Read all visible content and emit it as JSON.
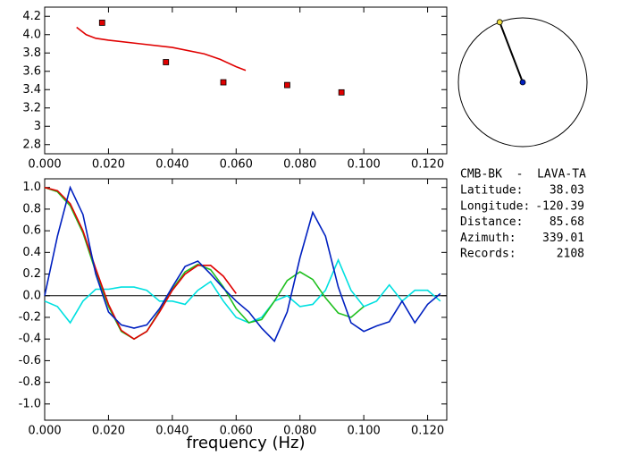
{
  "chart_data": [
    {
      "type": "scatter",
      "xlim": [
        0,
        0.126
      ],
      "ylim": [
        2.7,
        4.3
      ],
      "xticks": [
        {
          "value": 0,
          "label": "0.000"
        },
        {
          "value": 0.02,
          "label": "0.020"
        },
        {
          "value": 0.04,
          "label": "0.040"
        },
        {
          "value": 0.06,
          "label": "0.060"
        },
        {
          "value": 0.08,
          "label": "0.080"
        },
        {
          "value": 0.1,
          "label": "0.100"
        },
        {
          "value": 0.12,
          "label": "0.120"
        }
      ],
      "yticks": [
        2.8,
        3.0,
        3.2,
        3.4,
        3.6,
        3.8,
        {
          "value": 4,
          "label": "4.0"
        },
        4.2
      ],
      "points": {
        "color": "#e00000",
        "x": [
          0.018,
          0.038,
          0.056,
          0.076,
          0.093
        ],
        "values": [
          4.13,
          3.7,
          3.48,
          3.45,
          3.37
        ]
      },
      "curve": {
        "color": "#e00000",
        "x": [
          0.01,
          0.013,
          0.016,
          0.02,
          0.03,
          0.04,
          0.05,
          0.055,
          0.06,
          0.063
        ],
        "values": [
          4.08,
          4.0,
          3.96,
          3.94,
          3.9,
          3.86,
          3.79,
          3.73,
          3.65,
          3.61
        ]
      }
    },
    {
      "type": "line",
      "xlabel": "frequency (Hz)",
      "xlim": [
        0,
        0.126
      ],
      "ylim": [
        -1.15,
        1.08
      ],
      "xticks": [
        {
          "value": 0,
          "label": "0.000"
        },
        {
          "value": 0.02,
          "label": "0.020"
        },
        {
          "value": 0.04,
          "label": "0.040"
        },
        {
          "value": 0.06,
          "label": "0.060"
        },
        {
          "value": 0.08,
          "label": "0.080"
        },
        {
          "value": 0.1,
          "label": "0.100"
        },
        {
          "value": 0.12,
          "label": "0.120"
        }
      ],
      "yticks": [
        {
          "value": -1,
          "label": "-1.0"
        },
        -0.8,
        -0.6,
        -0.4,
        -0.2,
        {
          "value": 0,
          "label": "0.0"
        },
        0.2,
        0.4,
        0.6,
        0.8,
        {
          "value": 1,
          "label": "1.0"
        }
      ],
      "reference_line": 0,
      "x": [
        0,
        0.004,
        0.008,
        0.012,
        0.016,
        0.02,
        0.024,
        0.028,
        0.032,
        0.036,
        0.04,
        0.044,
        0.048,
        0.052,
        0.056,
        0.06,
        0.064,
        0.068,
        0.072,
        0.076,
        0.08,
        0.084,
        0.088,
        0.092,
        0.096,
        0.1,
        0.104,
        0.108,
        0.112,
        0.116,
        0.12,
        0.124
      ],
      "series": [
        {
          "color": "#00e0e0",
          "values": [
            -0.05,
            -0.1,
            -0.25,
            -0.05,
            0.06,
            0.06,
            0.08,
            0.08,
            0.05,
            -0.05,
            -0.05,
            -0.08,
            0.05,
            0.13,
            -0.05,
            -0.2,
            -0.25,
            -0.2,
            -0.05,
            0.0,
            -0.1,
            -0.08,
            0.05,
            0.33,
            0.05,
            -0.1,
            -0.05,
            0.1,
            -0.05,
            0.05,
            0.05,
            -0.05
          ]
        },
        {
          "color": "#20c020",
          "values": [
            1.0,
            0.96,
            0.83,
            0.58,
            0.22,
            -0.1,
            -0.33,
            -0.4,
            -0.33,
            -0.14,
            0.06,
            0.22,
            0.29,
            0.24,
            0.08,
            -0.12,
            -0.25,
            -0.22,
            -0.05,
            0.14,
            0.22,
            0.15,
            -0.02,
            -0.16,
            -0.2,
            -0.1,
            null,
            null,
            null,
            null,
            null,
            null
          ]
        },
        {
          "color": "#e00000",
          "values": [
            1.0,
            0.97,
            0.85,
            0.6,
            0.25,
            -0.08,
            -0.32,
            -0.4,
            -0.33,
            -0.15,
            0.05,
            0.2,
            0.28,
            0.28,
            0.18,
            0.02,
            null,
            null,
            null,
            null,
            null,
            null,
            null,
            null,
            null,
            null,
            null,
            null,
            null,
            null,
            null,
            null
          ]
        },
        {
          "color": "#0020c0",
          "values": [
            0.0,
            0.55,
            1.0,
            0.75,
            0.2,
            -0.15,
            -0.27,
            -0.3,
            -0.27,
            -0.12,
            0.08,
            0.27,
            0.32,
            0.2,
            0.07,
            -0.05,
            -0.15,
            -0.3,
            -0.42,
            -0.15,
            0.35,
            0.77,
            0.55,
            0.08,
            -0.25,
            -0.33,
            -0.28,
            -0.24,
            -0.05,
            -0.25,
            -0.08,
            0.02
          ]
        }
      ]
    }
  ],
  "info": {
    "station": "CMB-BK  -  LAVA-TA",
    "rows": [
      {
        "label": "Latitude:",
        "value": 38.03
      },
      {
        "label": "Longitude:",
        "value": -120.39
      },
      {
        "label": "Distance:",
        "value": 85.68
      },
      {
        "label": "Azimuth:",
        "value": 339.01
      },
      {
        "label": "Records:",
        "value": 2108
      }
    ]
  }
}
